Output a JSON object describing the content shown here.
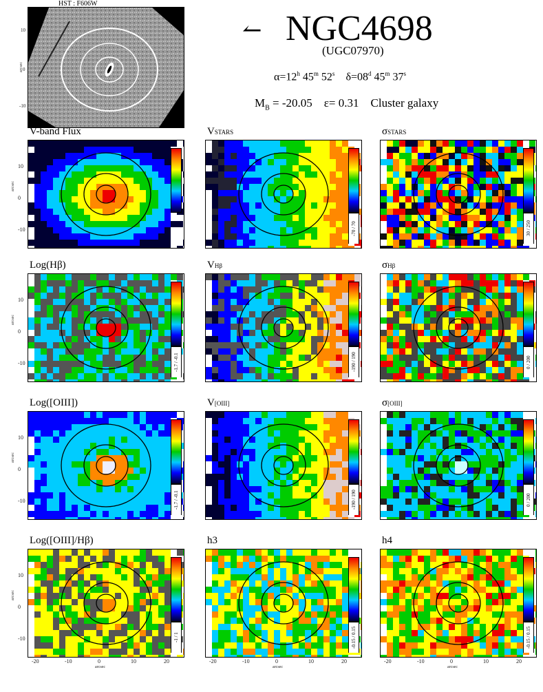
{
  "header": {
    "hst_label": "HST : F606W",
    "galaxy_name": "NGC4698",
    "arrow": "↼",
    "ugc": "(UGC07970)",
    "alpha": "α=12",
    "alpha_h": "h",
    "alpha_m": " 45",
    "alpha_ms": "m",
    "alpha_s": " 52",
    "alpha_ss": "s",
    "delta": "δ=08",
    "delta_d": "d",
    "delta_m": " 45",
    "delta_ms": "m",
    "delta_s": " 37",
    "delta_ss": "s",
    "mb": "M",
    "mb_sub": "B",
    "mb_val": " = -20.05",
    "eps": "ε= 0.31",
    "type": "Cluster galaxy"
  },
  "hst_ticks": [
    "10",
    "0",
    "-10"
  ],
  "hst_ylabel": "arcsec",
  "panels": [
    {
      "id": "vband",
      "label": "V-band Flux",
      "sub": "",
      "range": "",
      "style": "flux"
    },
    {
      "id": "vstars",
      "label": "V",
      "sub": "STARS",
      "range": "-70 / 70",
      "style": "vel"
    },
    {
      "id": "sstars",
      "label": "σ",
      "sub": "STARS",
      "range": "30 / 250",
      "style": "noise"
    },
    {
      "id": "hb",
      "label": "Log(Hβ)",
      "sub": "",
      "range": "-1.7 / -0.1",
      "style": "gas"
    },
    {
      "id": "vhb",
      "label": "V",
      "sub": "Hβ",
      "range": "-190 / 190",
      "style": "velgas"
    },
    {
      "id": "shb",
      "label": "σ",
      "sub": "Hβ",
      "range": "0 / 200",
      "style": "noisegas"
    },
    {
      "id": "oiii",
      "label": "Log([OIII])",
      "sub": "",
      "range": "-1.7 / -0.1",
      "style": "oiii"
    },
    {
      "id": "voiii",
      "label": "V",
      "sub": "[OIII]",
      "range": "-190 / 190",
      "style": "vel2"
    },
    {
      "id": "soiii",
      "label": "σ",
      "sub": "[OIII]",
      "range": "0 / 200",
      "style": "blue"
    },
    {
      "id": "ratio",
      "label": "Log([OIII]/Hβ)",
      "sub": "",
      "range": "-1 / 1",
      "style": "ratio"
    },
    {
      "id": "h3",
      "label": "h3",
      "sub": "",
      "range": "-0.15 / 0.15",
      "style": "h3"
    },
    {
      "id": "h4",
      "label": "h4",
      "sub": "",
      "range": "-0.15 / 0.15",
      "style": "h4"
    }
  ],
  "axis": {
    "x_ticks": [
      "-20",
      "-10",
      "0",
      "10",
      "20"
    ],
    "y_ticks": [
      "10",
      "0",
      "-10"
    ],
    "xlabel": "arcsec",
    "ylabel": "arcsec"
  }
}
